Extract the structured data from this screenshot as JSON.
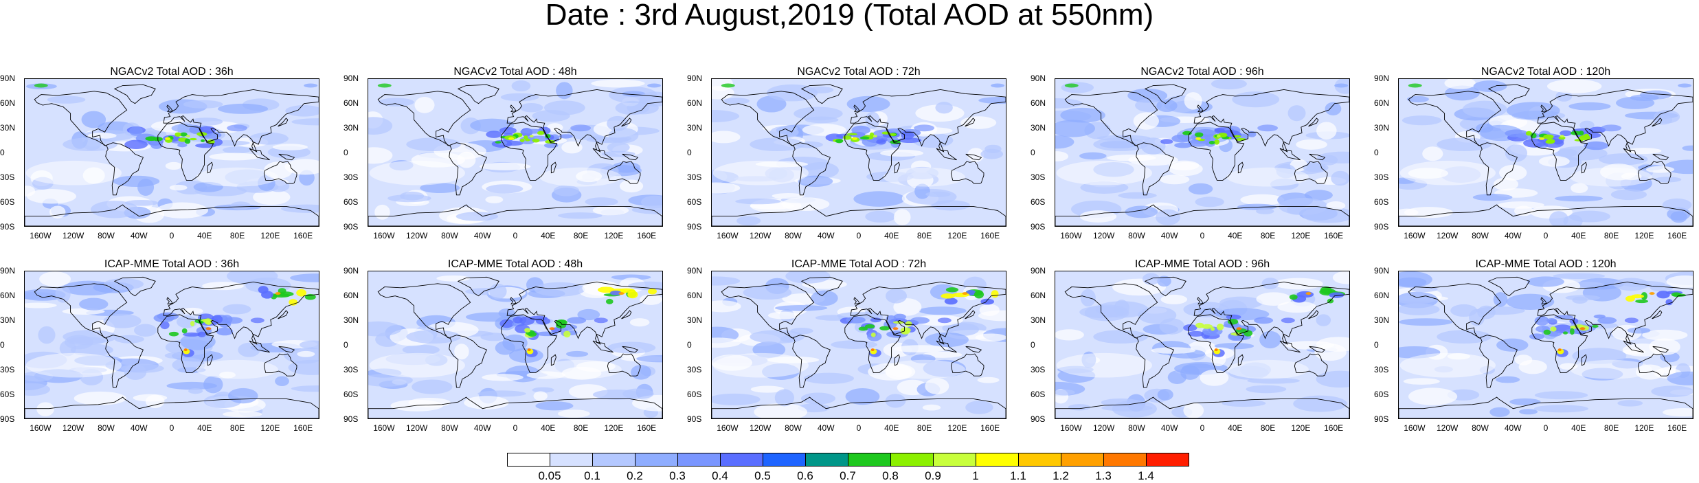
{
  "title": "Date : 3rd August,2019 (Total AOD at 550nm)",
  "panels": [
    {
      "title": "NGACv2 Total AOD : 36h",
      "row": 0,
      "col": 0,
      "model": "ngac"
    },
    {
      "title": "NGACv2 Total AOD : 48h",
      "row": 0,
      "col": 1,
      "model": "ngac"
    },
    {
      "title": "NGACv2 Total AOD : 72h",
      "row": 0,
      "col": 2,
      "model": "ngac"
    },
    {
      "title": "NGACv2 Total AOD : 96h",
      "row": 0,
      "col": 3,
      "model": "ngac"
    },
    {
      "title": "NGACv2 Total AOD : 120h",
      "row": 0,
      "col": 4,
      "model": "ngac"
    },
    {
      "title": "ICAP-MME Total AOD : 36h",
      "row": 1,
      "col": 0,
      "model": "icap"
    },
    {
      "title": "ICAP-MME Total AOD : 48h",
      "row": 1,
      "col": 1,
      "model": "icap"
    },
    {
      "title": "ICAP-MME Total AOD : 72h",
      "row": 1,
      "col": 2,
      "model": "icap"
    },
    {
      "title": "ICAP-MME Total AOD : 96h",
      "row": 1,
      "col": 3,
      "model": "icap"
    },
    {
      "title": "ICAP-MME Total AOD : 120h",
      "row": 1,
      "col": 4,
      "model": "icap"
    }
  ],
  "chart_data": {
    "type": "heatmap",
    "title": "Date : 3rd August,2019 (Total AOD at 550nm)",
    "projection": "cylindrical equidistant",
    "xlim": [
      -180,
      180
    ],
    "ylim": [
      -90,
      90
    ],
    "lat_ticks": [
      "90N",
      "60N",
      "30N",
      "0",
      "30S",
      "60S",
      "90S"
    ],
    "lon_ticks": [
      "160W",
      "120W",
      "80W",
      "40W",
      "0",
      "40E",
      "80E",
      "120E",
      "160E"
    ],
    "colorbar": {
      "levels": [
        "0.05",
        "0.1",
        "0.2",
        "0.3",
        "0.4",
        "0.5",
        "0.6",
        "0.7",
        "0.8",
        "0.9",
        "1",
        "1.1",
        "1.2",
        "1.3",
        "1.4"
      ],
      "colors": [
        "#ffffff",
        "#d6e1ff",
        "#b4c8ff",
        "#8fadff",
        "#7a96ff",
        "#5a6eff",
        "#1e64ff",
        "#009688",
        "#1ec81e",
        "#8cf000",
        "#c8ff3c",
        "#ffff00",
        "#ffc800",
        "#ffa000",
        "#ff7800",
        "#ff1e00"
      ]
    }
  }
}
